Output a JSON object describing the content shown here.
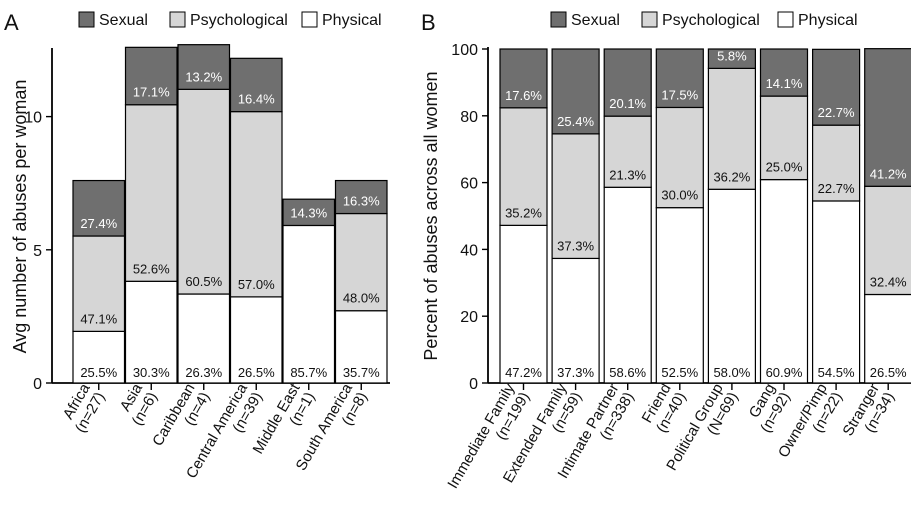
{
  "legend": {
    "entries": [
      "Sexual",
      "Psychological",
      "Physical"
    ],
    "colors": {
      "Sexual": "#6f6f6f",
      "Psychological": "#d6d6d6",
      "Physical": "#ffffff"
    }
  },
  "chart_data": [
    {
      "panel": "A",
      "type": "bar",
      "stacked": true,
      "ylabel": "Avg number of abuses per woman",
      "ylim": [
        0,
        12.5
      ],
      "yticks": [
        0,
        5,
        10
      ],
      "legend_position": "top",
      "categories": [
        "Africa (n=27)",
        "Asia (n=6)",
        "Caribbean (n=4)",
        "Central America (n=39)",
        "Middle East (n=1)",
        "South America (n=8)"
      ],
      "category_lines": [
        [
          "Africa",
          "(n=27)"
        ],
        [
          "Asia",
          "(n=6)"
        ],
        [
          "Caribbean",
          "(n=4)"
        ],
        [
          "Central America",
          "(n=39)"
        ],
        [
          "Middle East",
          "(n=1)"
        ],
        [
          "South America",
          "(n=8)"
        ]
      ],
      "totals": [
        7.6,
        12.6,
        12.7,
        12.2,
        6.9,
        7.6
      ],
      "series": [
        {
          "name": "Physical",
          "percent_labels": [
            "25.5%",
            "30.3%",
            "26.3%",
            "26.5%",
            "85.7%",
            "35.7%"
          ]
        },
        {
          "name": "Psychological",
          "percent_labels": [
            "47.1%",
            "52.6%",
            "60.5%",
            "57.0%",
            "",
            "48.0%"
          ]
        },
        {
          "name": "Sexual",
          "percent_labels": [
            "27.4%",
            "17.1%",
            "13.2%",
            "16.4%",
            "14.3%",
            "16.3%"
          ]
        }
      ]
    },
    {
      "panel": "B",
      "type": "bar",
      "stacked": true,
      "ylabel": "Percent of abuses across all women",
      "ylim": [
        0,
        100
      ],
      "yticks": [
        0,
        20,
        40,
        60,
        80,
        100
      ],
      "legend_position": "top",
      "categories": [
        "Immediate Family (n=199)",
        "Extended Family (n=59)",
        "Intimate Partner (n=338)",
        "Friend (n=40)",
        "Political Group (N=69)",
        "Gang (n=92)",
        "Owner/Pimp (n=22)",
        "Stranger (n=34)"
      ],
      "category_lines": [
        [
          "Immediate Family",
          "(n=199)"
        ],
        [
          "Extended Family",
          "(n=59)"
        ],
        [
          "Intimate Partner",
          "(n=338)"
        ],
        [
          "Friend",
          "(n=40)"
        ],
        [
          "Political Group",
          "(N=69)"
        ],
        [
          "Gang",
          "(n=92)"
        ],
        [
          "Owner/Pimp",
          "(n=22)"
        ],
        [
          "Stranger",
          "(n=34)"
        ]
      ],
      "series": [
        {
          "name": "Physical",
          "values": [
            47.2,
            37.3,
            58.6,
            52.5,
            58.0,
            60.9,
            54.5,
            26.5
          ],
          "percent_labels": [
            "47.2%",
            "37.3%",
            "58.6%",
            "52.5%",
            "58.0%",
            "60.9%",
            "54.5%",
            "26.5%"
          ]
        },
        {
          "name": "Psychological",
          "values": [
            35.2,
            37.3,
            21.3,
            30.0,
            36.2,
            25.0,
            22.7,
            32.4
          ],
          "percent_labels": [
            "35.2%",
            "37.3%",
            "21.3%",
            "30.0%",
            "36.2%",
            "25.0%",
            "22.7%",
            "32.4%"
          ]
        },
        {
          "name": "Sexual",
          "values": [
            17.6,
            25.4,
            20.1,
            17.5,
            5.8,
            14.1,
            22.7,
            41.2
          ],
          "percent_labels": [
            "17.6%",
            "25.4%",
            "20.1%",
            "17.5%",
            "5.8%",
            "14.1%",
            "22.7%",
            "41.2%"
          ]
        }
      ]
    }
  ]
}
